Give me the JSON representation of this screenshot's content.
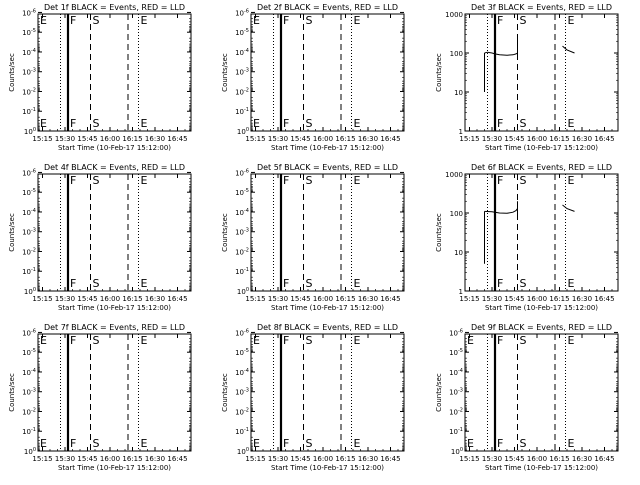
{
  "chart_data": [
    {
      "type": "line",
      "title": "Det 1f BLACK = Events, RED = LLD",
      "xlabel": "Start Time (10-Feb-17 15:12:00)",
      "ylabel": "Counts/sec",
      "xlim": [
        "15:12",
        "16:54"
      ],
      "x_ticks": [
        "15:15",
        "15:30",
        "15:45",
        "16:00",
        "16:15",
        "16:30",
        "16:45"
      ],
      "y_scale": "log",
      "ylim": [
        1,
        1.2e-06
      ],
      "y_ticks": [
        "10^0",
        "10^-1",
        "10^-2",
        "10^-3",
        "10^-4",
        "10^-5",
        "10^-6"
      ],
      "markers": [
        {
          "label": "E",
          "time": "15:12",
          "style": "dotted"
        },
        {
          "label": "",
          "time": "15:27",
          "style": "dotted"
        },
        {
          "label": "F",
          "time": "15:32",
          "style": "solid-thick"
        },
        {
          "label": "S",
          "time": "15:47",
          "style": "dashed"
        },
        {
          "label": "",
          "time": "16:12",
          "style": "dashed"
        },
        {
          "label": "E",
          "time": "16:19",
          "style": "dotted"
        }
      ],
      "series": []
    },
    {
      "type": "line",
      "title": "Det 2f BLACK = Events, RED = LLD",
      "xlabel": "Start Time (10-Feb-17 15:12:00)",
      "ylabel": "Counts/sec",
      "xlim": [
        "15:12",
        "16:54"
      ],
      "x_ticks": [
        "15:15",
        "15:30",
        "15:45",
        "16:00",
        "16:15",
        "16:30",
        "16:45"
      ],
      "y_scale": "log",
      "ylim": [
        1,
        1.2e-06
      ],
      "y_ticks": [
        "10^0",
        "10^-1",
        "10^-2",
        "10^-3",
        "10^-4",
        "10^-5",
        "10^-6"
      ],
      "markers": [
        {
          "label": "E",
          "time": "15:12",
          "style": "dotted"
        },
        {
          "label": "",
          "time": "15:27",
          "style": "dotted"
        },
        {
          "label": "F",
          "time": "15:32",
          "style": "solid-thick"
        },
        {
          "label": "S",
          "time": "15:47",
          "style": "dashed"
        },
        {
          "label": "",
          "time": "16:12",
          "style": "dashed"
        },
        {
          "label": "E",
          "time": "16:19",
          "style": "dotted"
        }
      ],
      "series": []
    },
    {
      "type": "line",
      "title": "Det 3f BLACK = Events, RED = LLD",
      "xlabel": "Start Time (10-Feb-17 15:12:00)",
      "ylabel": "Counts/sec",
      "xlim": [
        "15:12",
        "16:54"
      ],
      "x_ticks": [
        "15:15",
        "15:30",
        "15:45",
        "16:00",
        "16:15",
        "16:30",
        "16:45"
      ],
      "y_scale": "log",
      "ylim": [
        1,
        1000
      ],
      "y_ticks": [
        "1",
        "10",
        "100",
        "1000"
      ],
      "markers": [
        {
          "label": "",
          "time": "15:27",
          "style": "dotted"
        },
        {
          "label": "F",
          "time": "15:32",
          "style": "solid-thick"
        },
        {
          "label": "S",
          "time": "15:47",
          "style": "dashed"
        },
        {
          "label": "",
          "time": "16:12",
          "style": "dashed"
        },
        {
          "label": "E",
          "time": "16:19",
          "style": "dotted"
        }
      ],
      "series": [
        {
          "segments": [
            [
              [
                "15:25",
                10
              ],
              [
                "15:25",
                100
              ]
            ],
            [
              [
                "15:25",
                100
              ],
              [
                "15:27",
                105
              ],
              [
                "15:30",
                100
              ],
              [
                "15:32",
                95
              ],
              [
                "15:35",
                90
              ],
              [
                "15:40",
                88
              ],
              [
                "15:44",
                90
              ],
              [
                "15:46",
                95
              ],
              [
                "15:47",
                100
              ]
            ],
            [
              [
                "15:47",
                70
              ],
              [
                "15:47",
                250
              ]
            ],
            [
              [
                "16:17",
                150
              ],
              [
                "16:20",
                120
              ],
              [
                "16:25",
                100
              ]
            ]
          ]
        }
      ]
    },
    {
      "type": "line",
      "title": "Det 4f BLACK = Events, RED = LLD",
      "xlabel": "Start Time (10-Feb-17 15:12:00)",
      "ylabel": "Counts/sec",
      "xlim": [
        "15:12",
        "16:54"
      ],
      "x_ticks": [
        "15:15",
        "15:30",
        "15:45",
        "16:00",
        "16:15",
        "16:30",
        "16:45"
      ],
      "y_scale": "log",
      "ylim": [
        1,
        1.2e-06
      ],
      "y_ticks": [
        "10^0",
        "10^-1",
        "10^-2",
        "10^-3",
        "10^-4",
        "10^-5",
        "10^-6"
      ],
      "markers": [
        {
          "label": "",
          "time": "15:27",
          "style": "dotted"
        },
        {
          "label": "F",
          "time": "15:32",
          "style": "solid-thick"
        },
        {
          "label": "S",
          "time": "15:47",
          "style": "dashed"
        },
        {
          "label": "",
          "time": "16:12",
          "style": "dashed"
        },
        {
          "label": "E",
          "time": "16:19",
          "style": "dotted"
        }
      ],
      "series": []
    },
    {
      "type": "line",
      "title": "Det 5f BLACK = Events, RED = LLD",
      "xlabel": "Start Time (10-Feb-17 15:12:00)",
      "ylabel": "Counts/sec",
      "xlim": [
        "15:12",
        "16:54"
      ],
      "x_ticks": [
        "15:15",
        "15:30",
        "15:45",
        "16:00",
        "16:15",
        "16:30",
        "16:45"
      ],
      "y_scale": "log",
      "ylim": [
        1,
        1.2e-06
      ],
      "y_ticks": [
        "10^0",
        "10^-1",
        "10^-2",
        "10^-3",
        "10^-4",
        "10^-5",
        "10^-6"
      ],
      "markers": [
        {
          "label": "",
          "time": "15:27",
          "style": "dotted"
        },
        {
          "label": "F",
          "time": "15:32",
          "style": "solid-thick"
        },
        {
          "label": "S",
          "time": "15:47",
          "style": "dashed"
        },
        {
          "label": "",
          "time": "16:12",
          "style": "dashed"
        },
        {
          "label": "E",
          "time": "16:19",
          "style": "dotted"
        }
      ],
      "series": []
    },
    {
      "type": "line",
      "title": "Det 6f BLACK = Events, RED = LLD",
      "xlabel": "Start Time (10-Feb-17 15:12:00)",
      "ylabel": "Counts/sec",
      "xlim": [
        "15:12",
        "16:54"
      ],
      "x_ticks": [
        "15:15",
        "15:30",
        "15:45",
        "16:00",
        "16:15",
        "16:30",
        "16:45"
      ],
      "y_scale": "log",
      "ylim": [
        1,
        1000
      ],
      "y_ticks": [
        "1",
        "10",
        "100",
        "1000"
      ],
      "markers": [
        {
          "label": "",
          "time": "15:27",
          "style": "dotted"
        },
        {
          "label": "F",
          "time": "15:32",
          "style": "solid-thick"
        },
        {
          "label": "S",
          "time": "15:47",
          "style": "dashed"
        },
        {
          "label": "",
          "time": "16:12",
          "style": "dashed"
        },
        {
          "label": "E",
          "time": "16:19",
          "style": "dotted"
        }
      ],
      "series": [
        {
          "segments": [
            [
              [
                "15:25",
                5
              ],
              [
                "15:25",
                110
              ]
            ],
            [
              [
                "15:25",
                110
              ],
              [
                "15:30",
                108
              ],
              [
                "15:35",
                100
              ],
              [
                "15:40",
                98
              ],
              [
                "15:44",
                105
              ],
              [
                "15:46",
                115
              ],
              [
                "15:47",
                130
              ]
            ],
            [
              [
                "15:47",
                90
              ],
              [
                "15:47",
                200
              ]
            ],
            [
              [
                "16:17",
                160
              ],
              [
                "16:20",
                130
              ],
              [
                "16:25",
                110
              ]
            ]
          ]
        }
      ]
    },
    {
      "type": "line",
      "title": "Det 7f BLACK = Events, RED = LLD",
      "xlabel": "Start Time (10-Feb-17 15:12:00)",
      "ylabel": "Counts/sec",
      "xlim": [
        "15:12",
        "16:54"
      ],
      "x_ticks": [
        "15:15",
        "15:30",
        "15:45",
        "16:00",
        "16:15",
        "16:30",
        "16:45"
      ],
      "y_scale": "log",
      "ylim": [
        1,
        1.2e-06
      ],
      "y_ticks": [
        "10^0",
        "10^-1",
        "10^-2",
        "10^-3",
        "10^-4",
        "10^-5",
        "10^-6"
      ],
      "markers": [
        {
          "label": "E",
          "time": "15:12",
          "style": "dotted"
        },
        {
          "label": "",
          "time": "15:27",
          "style": "dotted"
        },
        {
          "label": "F",
          "time": "15:32",
          "style": "solid-thick"
        },
        {
          "label": "S",
          "time": "15:47",
          "style": "dashed"
        },
        {
          "label": "",
          "time": "16:12",
          "style": "dashed"
        },
        {
          "label": "E",
          "time": "16:19",
          "style": "dotted"
        }
      ],
      "series": []
    },
    {
      "type": "line",
      "title": "Det 8f BLACK = Events, RED = LLD",
      "xlabel": "Start Time (10-Feb-17 15:12:00)",
      "ylabel": "Counts/sec",
      "xlim": [
        "15:12",
        "16:54"
      ],
      "x_ticks": [
        "15:15",
        "15:30",
        "15:45",
        "16:00",
        "16:15",
        "16:30",
        "16:45"
      ],
      "y_scale": "log",
      "ylim": [
        1,
        1.2e-06
      ],
      "y_ticks": [
        "10^0",
        "10^-1",
        "10^-2",
        "10^-3",
        "10^-4",
        "10^-5",
        "10^-6"
      ],
      "markers": [
        {
          "label": "E",
          "time": "15:12",
          "style": "dotted"
        },
        {
          "label": "",
          "time": "15:27",
          "style": "dotted"
        },
        {
          "label": "F",
          "time": "15:32",
          "style": "solid-thick"
        },
        {
          "label": "S",
          "time": "15:47",
          "style": "dashed"
        },
        {
          "label": "",
          "time": "16:12",
          "style": "dashed"
        },
        {
          "label": "E",
          "time": "16:19",
          "style": "dotted"
        }
      ],
      "series": []
    },
    {
      "type": "line",
      "title": "Det 9f BLACK = Events, RED = LLD",
      "xlabel": "Start Time (10-Feb-17 15:12:00)",
      "ylabel": "Counts/sec",
      "xlim": [
        "15:12",
        "16:54"
      ],
      "x_ticks": [
        "15:15",
        "15:30",
        "15:45",
        "16:00",
        "16:15",
        "16:30",
        "16:45"
      ],
      "y_scale": "log",
      "ylim": [
        1,
        1.2e-06
      ],
      "y_ticks": [
        "10^0",
        "10^-1",
        "10^-2",
        "10^-3",
        "10^-4",
        "10^-5",
        "10^-6"
      ],
      "markers": [
        {
          "label": "E",
          "time": "15:12",
          "style": "dotted"
        },
        {
          "label": "",
          "time": "15:27",
          "style": "dotted"
        },
        {
          "label": "F",
          "time": "15:32",
          "style": "solid-thick"
        },
        {
          "label": "S",
          "time": "15:47",
          "style": "dashed"
        },
        {
          "label": "",
          "time": "16:12",
          "style": "dashed"
        },
        {
          "label": "E",
          "time": "16:19",
          "style": "dotted"
        }
      ],
      "series": []
    }
  ]
}
